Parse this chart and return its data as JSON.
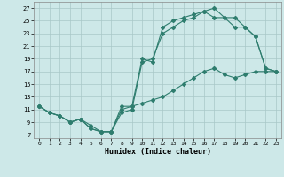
{
  "xlabel": "Humidex (Indice chaleur)",
  "background_color": "#cde8e8",
  "grid_color": "#a8c8c8",
  "line_color": "#2e7d6e",
  "xlim": [
    -0.5,
    23.5
  ],
  "ylim": [
    6.5,
    28
  ],
  "xticks": [
    0,
    1,
    2,
    3,
    4,
    5,
    6,
    7,
    8,
    9,
    10,
    11,
    12,
    13,
    14,
    15,
    16,
    17,
    18,
    19,
    20,
    21,
    22,
    23
  ],
  "yticks": [
    7,
    9,
    11,
    13,
    15,
    17,
    19,
    21,
    23,
    25,
    27
  ],
  "line1_x": [
    0,
    1,
    2,
    3,
    4,
    5,
    6,
    7,
    8,
    9,
    10,
    11,
    12,
    13,
    14,
    15,
    16,
    17,
    18,
    19,
    20,
    21,
    22,
    23
  ],
  "line1_y": [
    11.5,
    10.5,
    10.0,
    9.0,
    9.5,
    8.0,
    7.5,
    7.5,
    11.0,
    11.5,
    19.0,
    18.5,
    24.0,
    25.0,
    25.5,
    26.0,
    26.5,
    25.5,
    25.5,
    24.0,
    24.0,
    22.5,
    17.5,
    17.0
  ],
  "line2_x": [
    0,
    1,
    2,
    3,
    4,
    5,
    6,
    7,
    8,
    9,
    10,
    11,
    12,
    13,
    14,
    15,
    16,
    17,
    18,
    19,
    20,
    21,
    22,
    23
  ],
  "line2_y": [
    11.5,
    10.5,
    10.0,
    9.0,
    9.5,
    8.0,
    7.5,
    7.5,
    10.5,
    11.0,
    18.5,
    19.0,
    23.0,
    24.0,
    25.0,
    25.5,
    26.5,
    27.0,
    25.5,
    25.5,
    24.0,
    22.5,
    17.5,
    17.0
  ],
  "line3_x": [
    0,
    1,
    2,
    3,
    4,
    5,
    6,
    7,
    8,
    9,
    10,
    11,
    12,
    13,
    14,
    15,
    16,
    17,
    18,
    19,
    20,
    21,
    22,
    23
  ],
  "line3_y": [
    11.5,
    10.5,
    10.0,
    9.0,
    9.5,
    8.5,
    7.5,
    7.5,
    11.5,
    11.5,
    12.0,
    12.5,
    13.0,
    14.0,
    15.0,
    16.0,
    17.0,
    17.5,
    16.5,
    16.0,
    16.5,
    17.0,
    17.0,
    17.0
  ]
}
